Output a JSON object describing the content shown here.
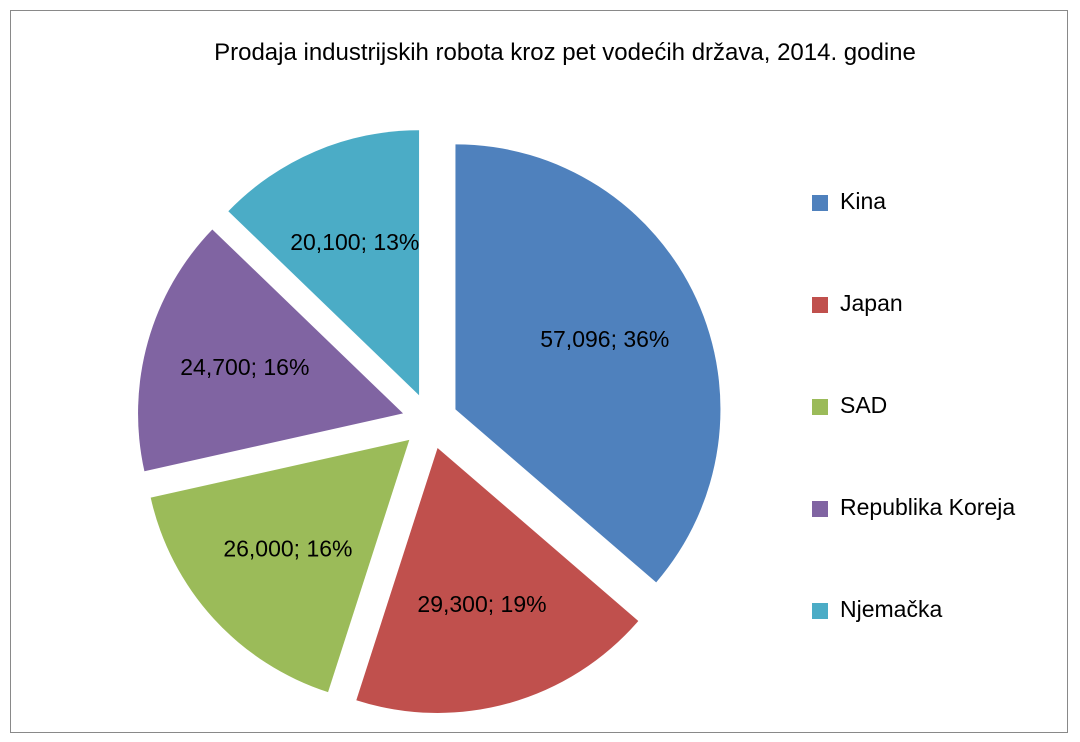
{
  "chart_data": {
    "type": "pie",
    "title": "Prodaja industrijskih robota kroz pet vodećih država, 2014. godine",
    "categories": [
      "Kina",
      "Japan",
      "SAD",
      "Republika Koreja",
      "Njemačka"
    ],
    "values": [
      57096,
      29300,
      26000,
      24700,
      20100
    ],
    "value_labels": [
      "57,096; 36%",
      "29,300; 19%",
      "26,000; 16%",
      "24,700; 16%",
      "20,100; 13%"
    ],
    "colors": [
      "#4f81bd",
      "#c0504d",
      "#9bbb59",
      "#8064a2",
      "#4bacc6"
    ],
    "legend": "right"
  }
}
